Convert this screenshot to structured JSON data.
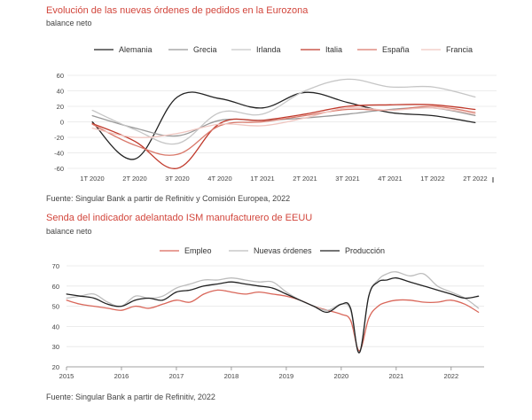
{
  "chart_data": [
    {
      "type": "line",
      "title": "Evolución de las nuevas órdenes de pedidos en la Eurozona",
      "subtitle": "balance neto",
      "source": "Fuente: Singular Bank a partir de Refinitiv y Comisión Europea, 2022",
      "categories": [
        "1T 2020",
        "2T 2020",
        "3T 2020",
        "4T 2020",
        "1T 2021",
        "2T 2021",
        "3T 2021",
        "4T 2021",
        "1T 2022",
        "2T 2022"
      ],
      "ylim": [
        -60,
        60
      ],
      "yticks": [
        -60,
        -40,
        -20,
        0,
        20,
        40,
        60
      ],
      "legend": "top",
      "grid": true,
      "series": [
        {
          "name": "Alemania",
          "color": "#222222",
          "values": [
            0,
            -48,
            32,
            30,
            18,
            38,
            25,
            12,
            8,
            -1
          ]
        },
        {
          "name": "Grecia",
          "color": "#999999",
          "values": [
            8,
            -8,
            -18,
            2,
            2,
            5,
            10,
            16,
            18,
            8
          ]
        },
        {
          "name": "Irlanda",
          "color": "#c6c6c6",
          "values": [
            15,
            -10,
            -28,
            12,
            10,
            40,
            55,
            45,
            45,
            32
          ]
        },
        {
          "name": "Italia",
          "color": "#c0392b",
          "values": [
            -2,
            -25,
            -60,
            -2,
            2,
            10,
            20,
            22,
            22,
            16
          ]
        },
        {
          "name": "España",
          "color": "#d9786a",
          "values": [
            -3,
            -30,
            -42,
            -5,
            0,
            8,
            16,
            15,
            20,
            12
          ]
        },
        {
          "name": "Francia",
          "color": "#f0c6c0",
          "values": [
            -8,
            -20,
            -15,
            -3,
            -5,
            5,
            18,
            15,
            18,
            10
          ]
        }
      ]
    },
    {
      "type": "line",
      "title": "Senda del indicador adelantado ISM manufacturero de EEUU",
      "subtitle": "balance neto",
      "source": "Fuente: Singular Bank a partir de Refinitiv, 2022",
      "xticks": [
        "2015",
        "2016",
        "2017",
        "2018",
        "2019",
        "2020",
        "2021",
        "2022"
      ],
      "x": [
        2015.0,
        2015.25,
        2015.5,
        2015.75,
        2016.0,
        2016.25,
        2016.5,
        2016.75,
        2017.0,
        2017.25,
        2017.5,
        2017.75,
        2018.0,
        2018.25,
        2018.5,
        2018.75,
        2019.0,
        2019.25,
        2019.5,
        2019.75,
        2020.0,
        2020.17,
        2020.33,
        2020.5,
        2020.67,
        2020.83,
        2021.0,
        2021.25,
        2021.5,
        2021.75,
        2022.0,
        2022.25,
        2022.5
      ],
      "ylim": [
        20,
        70
      ],
      "yticks": [
        20,
        30,
        40,
        50,
        60,
        70
      ],
      "legend": "top",
      "grid": true,
      "series": [
        {
          "name": "Empleo",
          "color": "#d9675a",
          "values": [
            53,
            51,
            50,
            49,
            48,
            50,
            49,
            51,
            53,
            52,
            56,
            58,
            57,
            56,
            57,
            56,
            55,
            53,
            50,
            48,
            46,
            43,
            28,
            44,
            50,
            52,
            53,
            53,
            52,
            52,
            53,
            51,
            47
          ]
        },
        {
          "name": "Nuevas órdenes",
          "color": "#bdbdbd",
          "values": [
            54,
            55,
            56,
            52,
            50,
            55,
            54,
            55,
            59,
            61,
            63,
            63,
            64,
            63,
            62,
            62,
            57,
            53,
            50,
            48,
            51,
            48,
            27,
            55,
            63,
            66,
            67,
            65,
            66,
            60,
            57,
            54,
            49
          ]
        },
        {
          "name": "Producción",
          "color": "#222222",
          "values": [
            56,
            55,
            54,
            51,
            50,
            53,
            54,
            53,
            57,
            58,
            60,
            61,
            62,
            61,
            60,
            59,
            56,
            53,
            50,
            47,
            51,
            49,
            27,
            55,
            62,
            63,
            64,
            62,
            60,
            58,
            56,
            54,
            55
          ]
        }
      ]
    }
  ]
}
